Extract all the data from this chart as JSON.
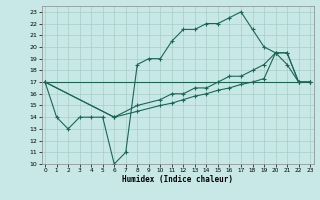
{
  "xlabel": "Humidex (Indice chaleur)",
  "bg_color": "#c8e8e8",
  "grid_color": "#a0c8c0",
  "line_color": "#1a6655",
  "line1_x": [
    0,
    1,
    2,
    3,
    4,
    5,
    6,
    7,
    8,
    9,
    10,
    11,
    12,
    13,
    14,
    15,
    16,
    17,
    18,
    19,
    20,
    21,
    22,
    23
  ],
  "line1_y": [
    17,
    14,
    13,
    14,
    14,
    14,
    10,
    11,
    18.5,
    19,
    19,
    20.5,
    21.5,
    21.5,
    22,
    22,
    22.5,
    23,
    21.5,
    20,
    19.5,
    18.5,
    17,
    17
  ],
  "line2_x": [
    0,
    6,
    8,
    10,
    11,
    12,
    13,
    14,
    15,
    16,
    17,
    18,
    19,
    20,
    21,
    22,
    23
  ],
  "line2_y": [
    17,
    14,
    15,
    15.5,
    16,
    16,
    16.5,
    16.5,
    17,
    17.5,
    17.5,
    18,
    18.5,
    19.5,
    19.5,
    17,
    17
  ],
  "line3_x": [
    0,
    6,
    8,
    10,
    11,
    12,
    13,
    14,
    15,
    16,
    17,
    18,
    19,
    20,
    21,
    22,
    23
  ],
  "line3_y": [
    17,
    14,
    14.5,
    15,
    15.2,
    15.5,
    15.8,
    16,
    16.3,
    16.5,
    16.8,
    17,
    17.3,
    19.5,
    19.5,
    17,
    17
  ],
  "line4_x": [
    0,
    23
  ],
  "line4_y": [
    17,
    17
  ],
  "xlim": [
    -0.3,
    23.3
  ],
  "ylim": [
    10,
    23.5
  ],
  "yticks": [
    10,
    11,
    12,
    13,
    14,
    15,
    16,
    17,
    18,
    19,
    20,
    21,
    22,
    23
  ],
  "xticks": [
    0,
    1,
    2,
    3,
    4,
    5,
    6,
    7,
    8,
    9,
    10,
    11,
    12,
    13,
    14,
    15,
    16,
    17,
    18,
    19,
    20,
    21,
    22,
    23
  ]
}
